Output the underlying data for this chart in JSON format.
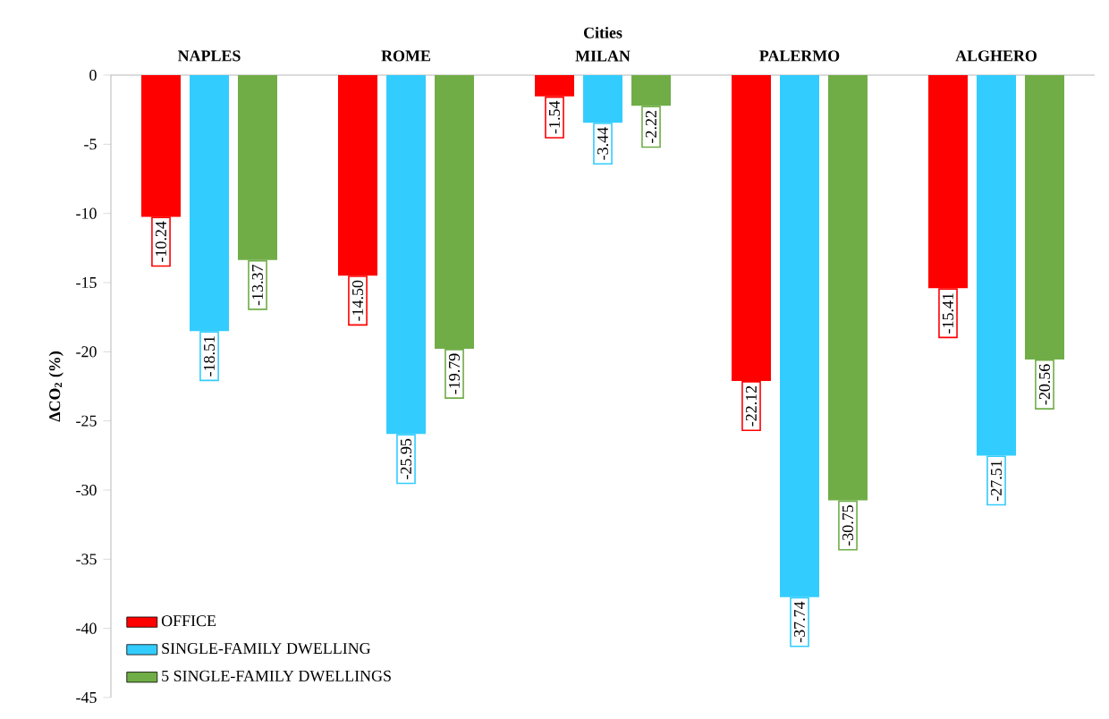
{
  "chart_data": {
    "type": "bar",
    "xlabel": "Cities",
    "ylabel": "ΔCO$_{2}$ (%)",
    "categories": [
      "NAPLES",
      "ROME",
      "MILAN",
      "PALERMO",
      "ALGHERO"
    ],
    "series": [
      {
        "name": "OFFICE",
        "color": "#ff0000",
        "values": [
          -10.24,
          -14.5,
          -1.54,
          -22.12,
          -15.41
        ],
        "value_labels": [
          "-10.24",
          "-14.50",
          "-1.54",
          "-22.12",
          "-15.41"
        ]
      },
      {
        "name": "SINGLE-FAMILY DWELLING",
        "color": "#33ccff",
        "values": [
          -18.51,
          -25.95,
          -3.44,
          -37.74,
          -27.51
        ],
        "value_labels": [
          "-18.51",
          "-25.95",
          "-3.44",
          "-37.74",
          "-27.51"
        ]
      },
      {
        "name": "5 SINGLE-FAMILY DWELLINGS",
        "color": "#70ad47",
        "values": [
          -13.37,
          -19.79,
          -2.22,
          -30.75,
          -20.56
        ],
        "value_labels": [
          "-13.37",
          "-19.79",
          "-2.22",
          "-30.75",
          "-20.56"
        ]
      }
    ],
    "ylim": [
      -45,
      0
    ],
    "yticks": [
      -45,
      -40,
      -35,
      -30,
      -25,
      -20,
      -15,
      -10,
      -5,
      0
    ],
    "legend": "bottom left"
  }
}
